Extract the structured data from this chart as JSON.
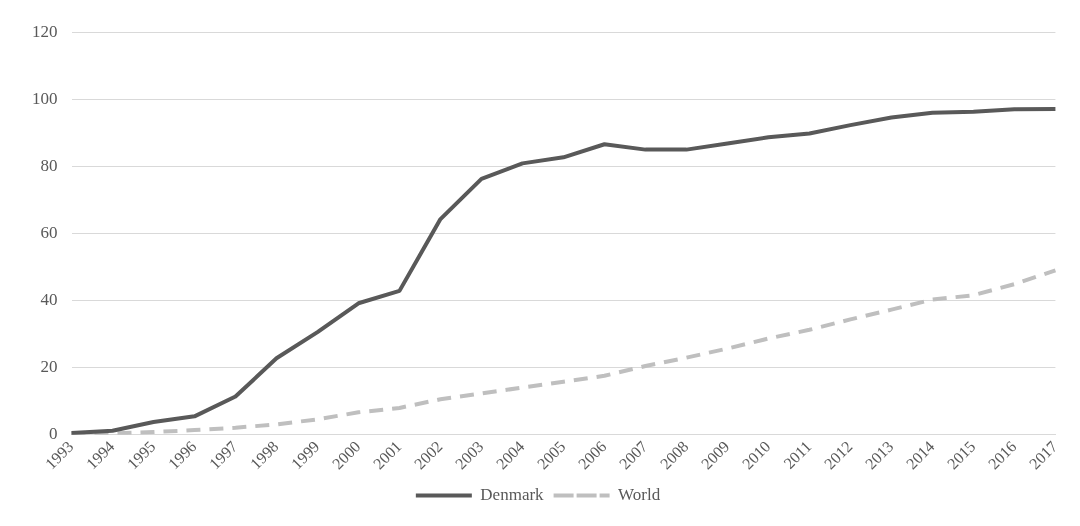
{
  "chart_data": {
    "type": "line",
    "categories": [
      "1993",
      "1994",
      "1995",
      "1996",
      "1997",
      "1998",
      "1999",
      "2000",
      "2001",
      "2002",
      "2003",
      "2004",
      "2005",
      "2006",
      "2007",
      "2008",
      "2009",
      "2010",
      "2011",
      "2012",
      "2013",
      "2014",
      "2015",
      "2016",
      "2017"
    ],
    "series": [
      {
        "name": "Denmark",
        "color": "#595959",
        "line_style": "solid",
        "values": [
          0.5,
          1.2,
          3.8,
          5.5,
          11.4,
          22.8,
          30.6,
          39.2,
          42.9,
          64.3,
          76.3,
          80.9,
          82.7,
          86.6,
          85,
          85,
          86.8,
          88.7,
          89.8,
          92.3,
          94.6,
          96,
          96.3,
          97,
          97.1
        ]
      },
      {
        "name": "World",
        "color": "#bfbfbf",
        "line_style": "dashed",
        "values": [
          0.3,
          0.4,
          0.8,
          1.4,
          2.1,
          3.1,
          4.6,
          6.7,
          8,
          10.6,
          12.3,
          14.1,
          15.8,
          17.6,
          20.5,
          23,
          25.7,
          28.7,
          31.3,
          34.4,
          37.3,
          40.3,
          41.6,
          44.9,
          49
        ]
      }
    ],
    "ylim": [
      0,
      120
    ],
    "yticks": [
      0,
      20,
      40,
      60,
      80,
      100,
      120
    ],
    "grid": "y",
    "legend": "bottom",
    "marker": "none"
  }
}
